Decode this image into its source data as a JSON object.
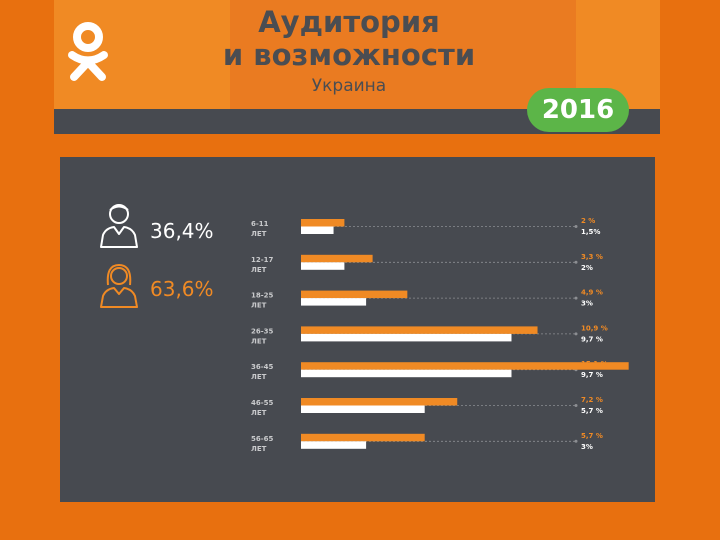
{
  "header": {
    "title_line1": "Аудитория",
    "title_line2": "и возможности",
    "subtitle": "Украина",
    "year": "2016",
    "logo_icon": "odnoklassniki-logo-icon"
  },
  "gender": {
    "male": {
      "value": "36,4%",
      "icon": "male-user-icon",
      "color": "#ffffff"
    },
    "female": {
      "value": "63,6%",
      "icon": "female-user-icon",
      "color": "#f08a24"
    }
  },
  "colors": {
    "orange": "#f08a24",
    "white": "#ffffff",
    "panel": "#474a50",
    "green": "#5cb548"
  },
  "chart_data": {
    "type": "bar",
    "orientation": "horizontal",
    "categories": [
      "6-11 ЛЕТ",
      "12-17 ЛЕТ",
      "18-25 ЛЕТ",
      "26-35 ЛЕТ",
      "36-45 ЛЕТ",
      "46-55 ЛЕТ",
      "56-65 ЛЕТ"
    ],
    "category_lines": [
      [
        "6-11",
        "ЛЕТ"
      ],
      [
        "12-17",
        "ЛЕТ"
      ],
      [
        "18-25",
        "ЛЕТ"
      ],
      [
        "26-35",
        "ЛЕТ"
      ],
      [
        "36-45",
        "ЛЕТ"
      ],
      [
        "46-55",
        "ЛЕТ"
      ],
      [
        "56-65",
        "ЛЕТ"
      ]
    ],
    "series": [
      {
        "color": "#f08a24",
        "values": [
          2,
          3.3,
          4.9,
          10.9,
          15.1,
          7.2,
          5.7
        ],
        "labels": [
          "2 %",
          "3,3 %",
          "4,9 %",
          "10,9 %",
          "15,1 %",
          "7,2 %",
          "5,7 %"
        ]
      },
      {
        "color": "#ffffff",
        "values": [
          1.5,
          2,
          3,
          9.7,
          9.7,
          5.7,
          3
        ],
        "labels": [
          "1,5%",
          "2%",
          "3%",
          "9,7 %",
          "9,7 %",
          "5,7 %",
          "3%"
        ]
      }
    ],
    "grid": false,
    "legend": "none"
  }
}
